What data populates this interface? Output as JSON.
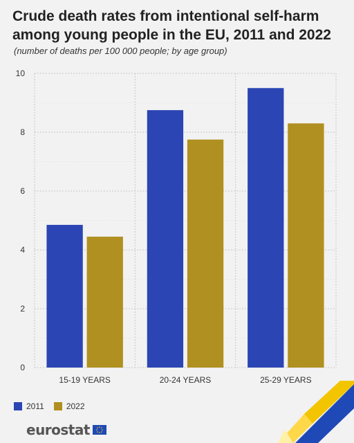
{
  "title": "Crude death rates from intentional self-harm among young people in the EU, 2011 and 2022",
  "subtitle": "(number of deaths per 100 000 people; by age group)",
  "logo": {
    "text": "eurostat",
    "flag": "eu-flag-icon"
  },
  "colors": {
    "s2011": "#2b45b4",
    "s2022": "#b09020",
    "grid": "#c8c8c8",
    "background": "#f2f2f2"
  },
  "chart_data": {
    "type": "bar",
    "categories": [
      "15-19 YEARS",
      "20-24 YEARS",
      "25-29 YEARS"
    ],
    "series": [
      {
        "name": "2011",
        "values": [
          4.85,
          8.75,
          9.5
        ]
      },
      {
        "name": "2022",
        "values": [
          4.45,
          7.75,
          8.3
        ]
      }
    ],
    "ylim": [
      0,
      10
    ],
    "yticks": [
      0,
      2,
      4,
      6,
      8,
      10
    ],
    "grid": true,
    "legend_position": "bottom-left"
  }
}
